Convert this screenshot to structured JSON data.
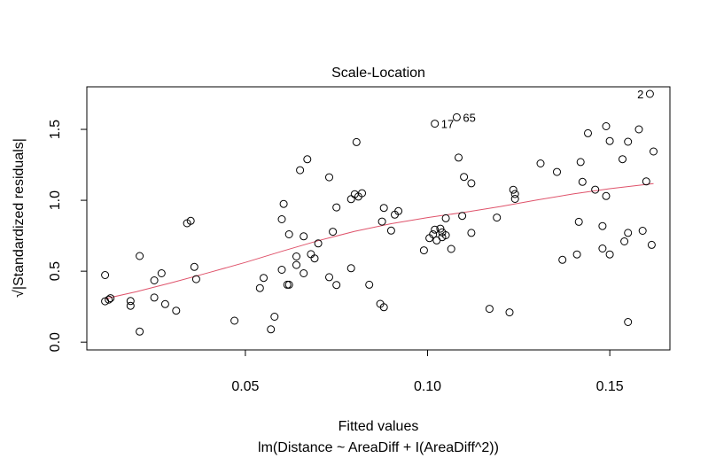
{
  "chart_data": {
    "type": "scatter",
    "title": "Scale-Location",
    "xlabel": "Fitted values",
    "sublabel": "lm(Distance ~ AreaDiff + I(AreaDiff^2))",
    "ylabel": "√|Standardized residuals|",
    "xlim": [
      0.0065,
      0.1665
    ],
    "ylim": [
      -0.055,
      1.8
    ],
    "xticks": [
      0.05,
      0.1,
      0.15
    ],
    "xtick_labels": [
      "0.05",
      "0.10",
      "0.15"
    ],
    "yticks": [
      0.0,
      0.5,
      1.0,
      1.5
    ],
    "ytick_labels": [
      "0.0",
      "0.5",
      "1.0",
      "1.5"
    ],
    "grid": false,
    "colors": {
      "points": "#000000",
      "smoother": "#DF536B",
      "axes": "#000000"
    },
    "points": [
      [
        0.0115,
        0.473
      ],
      [
        0.0115,
        0.288
      ],
      [
        0.0125,
        0.3
      ],
      [
        0.013,
        0.31
      ],
      [
        0.0185,
        0.29
      ],
      [
        0.0185,
        0.256
      ],
      [
        0.021,
        0.607
      ],
      [
        0.021,
        0.074
      ],
      [
        0.025,
        0.435
      ],
      [
        0.025,
        0.314
      ],
      [
        0.027,
        0.485
      ],
      [
        0.028,
        0.268
      ],
      [
        0.031,
        0.222
      ],
      [
        0.034,
        0.838
      ],
      [
        0.035,
        0.855
      ],
      [
        0.036,
        0.53
      ],
      [
        0.0365,
        0.444
      ],
      [
        0.047,
        0.151
      ],
      [
        0.054,
        0.381
      ],
      [
        0.055,
        0.453
      ],
      [
        0.057,
        0.09
      ],
      [
        0.058,
        0.179
      ],
      [
        0.06,
        0.866
      ],
      [
        0.0605,
        0.974
      ],
      [
        0.06,
        0.51
      ],
      [
        0.0615,
        0.405
      ],
      [
        0.062,
        0.405
      ],
      [
        0.062,
        0.76
      ],
      [
        0.064,
        0.544
      ],
      [
        0.064,
        0.604
      ],
      [
        0.065,
        1.212
      ],
      [
        0.066,
        0.485
      ],
      [
        0.066,
        0.746
      ],
      [
        0.067,
        1.289
      ],
      [
        0.068,
        0.62
      ],
      [
        0.069,
        0.59
      ],
      [
        0.07,
        0.696
      ],
      [
        0.073,
        1.162
      ],
      [
        0.073,
        0.458
      ],
      [
        0.074,
        0.778
      ],
      [
        0.075,
        0.403
      ],
      [
        0.075,
        0.95
      ],
      [
        0.079,
        1.008
      ],
      [
        0.079,
        0.521
      ],
      [
        0.08,
        1.043
      ],
      [
        0.0805,
        1.41
      ],
      [
        0.081,
        1.026
      ],
      [
        0.082,
        1.05
      ],
      [
        0.084,
        0.405
      ],
      [
        0.087,
        0.27
      ],
      [
        0.0875,
        0.85
      ],
      [
        0.088,
        0.946
      ],
      [
        0.088,
        0.246
      ],
      [
        0.09,
        0.786
      ],
      [
        0.091,
        0.899
      ],
      [
        0.092,
        0.924
      ],
      [
        0.099,
        0.647
      ],
      [
        0.1005,
        0.733
      ],
      [
        0.1015,
        0.76
      ],
      [
        0.102,
        0.793
      ],
      [
        0.102,
        1.54
      ],
      [
        0.1025,
        0.717
      ],
      [
        0.1035,
        0.8
      ],
      [
        0.104,
        0.774
      ],
      [
        0.104,
        0.74
      ],
      [
        0.105,
        0.873
      ],
      [
        0.105,
        0.754
      ],
      [
        0.1065,
        0.657
      ],
      [
        0.108,
        1.585
      ],
      [
        0.1085,
        1.301
      ],
      [
        0.1095,
        0.89
      ],
      [
        0.11,
        1.165
      ],
      [
        0.112,
        1.12
      ],
      [
        0.112,
        0.77
      ],
      [
        0.117,
        0.235
      ],
      [
        0.119,
        0.878
      ],
      [
        0.1225,
        0.21
      ],
      [
        0.1235,
        1.074
      ],
      [
        0.124,
        1.044
      ],
      [
        0.124,
        1.01
      ],
      [
        0.131,
        1.26
      ],
      [
        0.1355,
        1.2
      ],
      [
        0.137,
        0.58
      ],
      [
        0.141,
        0.618
      ],
      [
        0.1415,
        0.848
      ],
      [
        0.142,
        1.27
      ],
      [
        0.1425,
        1.13
      ],
      [
        0.144,
        1.473
      ],
      [
        0.146,
        1.075
      ],
      [
        0.148,
        0.818
      ],
      [
        0.148,
        0.66
      ],
      [
        0.149,
        1.522
      ],
      [
        0.149,
        1.03
      ],
      [
        0.15,
        1.418
      ],
      [
        0.15,
        0.618
      ],
      [
        0.1535,
        1.29
      ],
      [
        0.154,
        0.71
      ],
      [
        0.155,
        1.413
      ],
      [
        0.155,
        0.142
      ],
      [
        0.155,
        0.77
      ],
      [
        0.158,
        1.5
      ],
      [
        0.159,
        0.785
      ],
      [
        0.16,
        1.133
      ],
      [
        0.161,
        1.75
      ],
      [
        0.1615,
        0.686
      ],
      [
        0.162,
        1.344
      ]
    ],
    "point_labels": [
      {
        "text": "2",
        "x": 0.161,
        "y": 1.75,
        "side": "left"
      },
      {
        "text": "17",
        "x": 0.102,
        "y": 1.54,
        "side": "right"
      },
      {
        "text": "65",
        "x": 0.108,
        "y": 1.585,
        "side": "right"
      }
    ],
    "smoother": [
      [
        0.0115,
        0.306
      ],
      [
        0.02,
        0.355
      ],
      [
        0.03,
        0.42
      ],
      [
        0.04,
        0.49
      ],
      [
        0.05,
        0.562
      ],
      [
        0.06,
        0.64
      ],
      [
        0.07,
        0.715
      ],
      [
        0.08,
        0.781
      ],
      [
        0.09,
        0.835
      ],
      [
        0.1,
        0.878
      ],
      [
        0.11,
        0.915
      ],
      [
        0.12,
        0.956
      ],
      [
        0.13,
        1.002
      ],
      [
        0.14,
        1.045
      ],
      [
        0.15,
        1.082
      ],
      [
        0.162,
        1.118
      ]
    ]
  }
}
